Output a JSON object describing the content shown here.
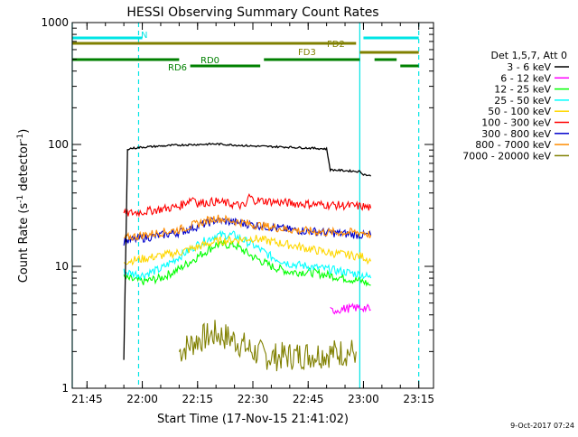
{
  "chart_data": {
    "type": "line",
    "title": "HESSI Observing Summary Count Rates",
    "xlabel": "Start Time (17-Nov-15 21:41:02)",
    "ylabel": "Count Rate (s-1 detector-1)",
    "ylabel_parts": {
      "main": "Count Rate (s",
      "exp1": "-1",
      "mid": " detector",
      "exp2": "-1",
      "end": ")"
    },
    "y_scale": "log",
    "ylim": [
      1,
      1000
    ],
    "xlim": [
      "21:41",
      "23:19"
    ],
    "x_ticks": [
      "21:45",
      "22:00",
      "22:15",
      "22:30",
      "22:45",
      "23:00",
      "23:15"
    ],
    "y_ticks": [
      "1",
      "10",
      "100",
      "1000"
    ],
    "grid": false,
    "footer_date": "9-Oct-2017 07:24",
    "legend": {
      "placement": "right",
      "header": "Det 1,5,7, Att 0",
      "entries": [
        {
          "label": "3 - 6 keV",
          "color": "#000000"
        },
        {
          "label": "6 - 12 keV",
          "color": "#ff00ff"
        },
        {
          "label": "12 - 25 keV",
          "color": "#00ff00"
        },
        {
          "label": "25 - 50 keV",
          "color": "#00ffff"
        },
        {
          "label": "50 - 100 keV",
          "color": "#ffd700"
        },
        {
          "label": "100 - 300 keV",
          "color": "#ff0000"
        },
        {
          "label": "300 - 800 keV",
          "color": "#0000cc"
        },
        {
          "label": "800 - 7000 keV",
          "color": "#ff8c00"
        },
        {
          "label": "7000 - 20000 keV",
          "color": "#808000"
        }
      ]
    },
    "flag_bars": [
      {
        "label": "N",
        "color": "#00e5e5",
        "segments": [
          [
            "21:41",
            "22:00"
          ],
          [
            "23:00",
            "23:15"
          ]
        ]
      },
      {
        "label": "FD2",
        "color": "#808000",
        "segments": [
          [
            "21:41",
            "22:58"
          ]
        ]
      },
      {
        "label": "FD3",
        "color": "#808000",
        "segments": [
          [
            "22:59",
            "23:15"
          ]
        ]
      },
      {
        "label": "RD0",
        "color": "#008000",
        "segments": [
          [
            "21:41",
            "22:10"
          ],
          [
            "22:33",
            "22:59"
          ],
          [
            "23:03",
            "23:09"
          ]
        ]
      },
      {
        "label": "RD6",
        "color": "#008000",
        "segments": [
          [
            "22:13",
            "22:32"
          ],
          [
            "23:10",
            "23:15"
          ]
        ]
      }
    ],
    "vertical_markers": [
      {
        "time": "21:41",
        "style": "solid",
        "color": "#00e5e5"
      },
      {
        "time": "21:59",
        "style": "dashed",
        "color": "#00e5e5"
      },
      {
        "time": "22:59",
        "style": "solid",
        "color": "#00e5e5"
      },
      {
        "time": "23:15",
        "style": "dashed",
        "color": "#00e5e5"
      }
    ],
    "series": [
      {
        "name": "3 - 6 keV",
        "color": "#000000",
        "x": [
          "21:55",
          "21:56",
          "22:00",
          "22:10",
          "22:20",
          "22:30",
          "22:40",
          "22:50",
          "22:51",
          "22:59",
          "23:00",
          "23:02"
        ],
        "y": [
          1.7,
          92,
          95,
          99,
          101,
          97,
          95,
          92,
          62,
          60,
          57,
          55
        ]
      },
      {
        "name": "6 - 12 keV",
        "color": "#ff00ff",
        "x": [
          "22:51",
          "22:55",
          "23:00",
          "23:02"
        ],
        "y": [
          4.3,
          4.5,
          4.6,
          4.4
        ]
      },
      {
        "name": "12 - 25 keV",
        "color": "#00ff00",
        "x": [
          "21:55",
          "22:00",
          "22:05",
          "22:10",
          "22:15",
          "22:20",
          "22:25",
          "22:30",
          "22:35",
          "22:40",
          "22:45",
          "22:50",
          "22:55",
          "23:00",
          "23:02"
        ],
        "y": [
          8,
          7.5,
          8,
          9.5,
          12,
          15,
          15,
          12,
          10,
          9,
          9,
          8.5,
          8,
          7.5,
          7
        ]
      },
      {
        "name": "25 - 50 keV",
        "color": "#00ffff",
        "x": [
          "21:55",
          "22:00",
          "22:05",
          "22:10",
          "22:15",
          "22:20",
          "22:25",
          "22:30",
          "22:35",
          "22:40",
          "22:45",
          "22:50",
          "22:55",
          "23:00",
          "23:02"
        ],
        "y": [
          9,
          8.5,
          9.5,
          12,
          15,
          18,
          18,
          15,
          12,
          10.5,
          10,
          9.5,
          9,
          8.5,
          8
        ]
      },
      {
        "name": "50 - 100 keV",
        "color": "#ffd700",
        "x": [
          "21:55",
          "22:00",
          "22:10",
          "22:20",
          "22:30",
          "22:40",
          "22:50",
          "23:00",
          "23:02"
        ],
        "y": [
          11,
          11.5,
          13,
          16,
          17,
          15,
          13,
          12,
          11
        ]
      },
      {
        "name": "100 - 300 keV",
        "color": "#ff0000",
        "x": [
          "21:55",
          "22:00",
          "22:10",
          "22:14",
          "22:15",
          "22:20",
          "22:28",
          "22:29",
          "22:30",
          "22:40",
          "22:50",
          "23:00",
          "23:02"
        ],
        "y": [
          27,
          28,
          31,
          37,
          33,
          34,
          31,
          38,
          35,
          33,
          32,
          31,
          30
        ]
      },
      {
        "name": "300 - 800 keV",
        "color": "#0000cc",
        "x": [
          "21:55",
          "22:00",
          "22:10",
          "22:20",
          "22:30",
          "22:40",
          "22:50",
          "23:00",
          "23:02"
        ],
        "y": [
          16,
          17,
          19,
          24,
          22,
          20,
          19,
          18,
          18
        ]
      },
      {
        "name": "800 - 7000 keV",
        "color": "#ff8c00",
        "x": [
          "21:55",
          "22:00",
          "22:10",
          "22:20",
          "22:30",
          "22:40",
          "22:50",
          "23:00",
          "23:02"
        ],
        "y": [
          17,
          18,
          20,
          25,
          22,
          20,
          19,
          19,
          18
        ]
      },
      {
        "name": "7000 - 20000 keV",
        "color": "#808000",
        "x": [
          "22:10",
          "22:15",
          "22:20",
          "22:25",
          "22:30",
          "22:35",
          "22:58"
        ],
        "y": [
          2.0,
          2.5,
          2.8,
          2.5,
          2.0,
          1.8,
          2.0
        ]
      }
    ]
  }
}
